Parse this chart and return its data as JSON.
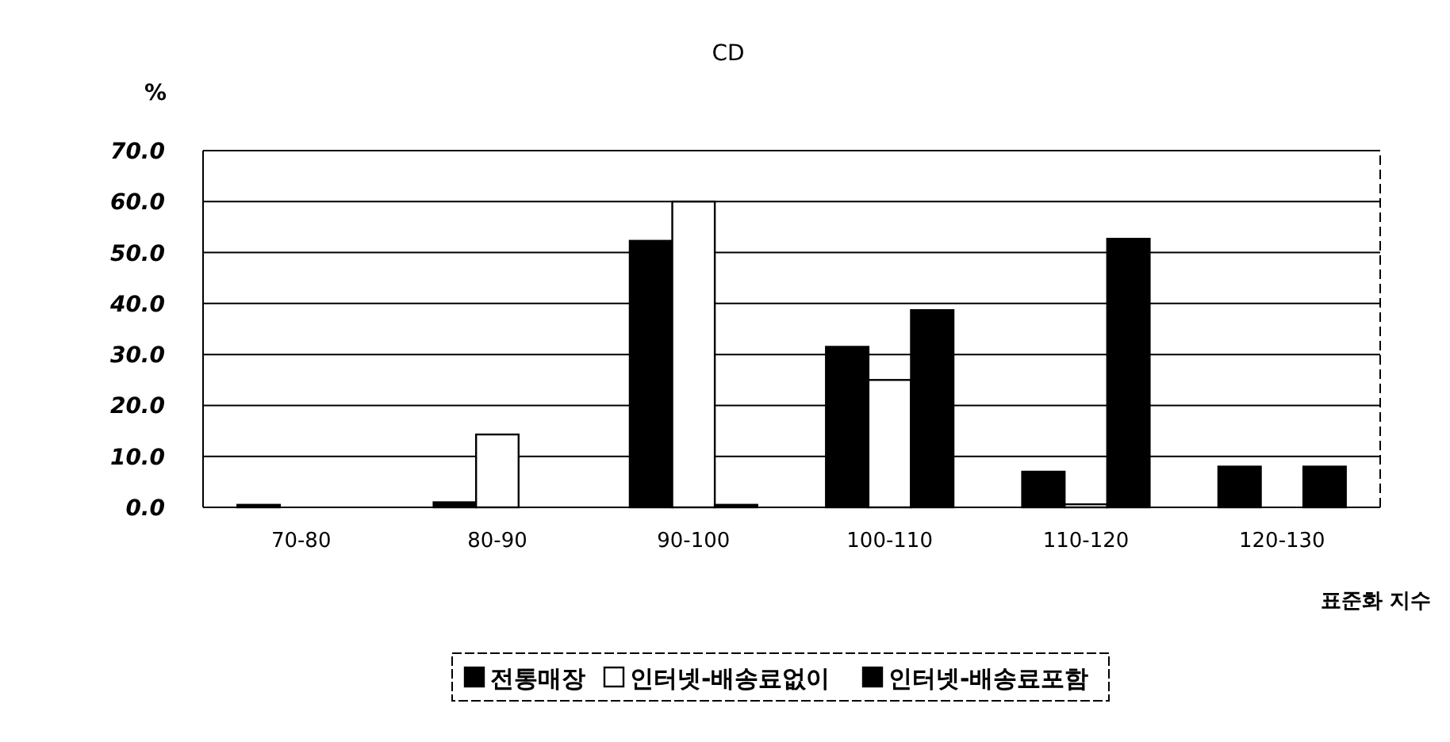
{
  "chart_data": {
    "type": "bar",
    "title": "CD",
    "ylabel": "%",
    "xlabel": "표준화 지수",
    "categories": [
      "70-80",
      "80-90",
      "90-100",
      "100-110",
      "110-120",
      "120-130"
    ],
    "series": [
      {
        "name": "전통매장",
        "color": "#000000",
        "values": [
          0.5,
          1.0,
          52.3,
          31.5,
          7.0,
          8.0
        ]
      },
      {
        "name": "인터넷-배송료없이",
        "color": "#ffffff",
        "values": [
          0,
          14.3,
          60.0,
          25.0,
          0.6,
          0
        ]
      },
      {
        "name": "인터넷-배송료포함",
        "color": "#000000",
        "values": [
          0,
          0,
          0.5,
          38.7,
          52.7,
          8.0
        ]
      }
    ],
    "ylim": [
      0,
      70
    ],
    "yticks": [
      {
        "value": 0,
        "label": "0.0"
      },
      {
        "value": 10,
        "label": "10.0"
      },
      {
        "value": 20,
        "label": "20.0"
      },
      {
        "value": 30,
        "label": "30.0"
      },
      {
        "value": 40,
        "label": "40.0"
      },
      {
        "value": 50,
        "label": "50.0"
      },
      {
        "value": 60,
        "label": "60.0"
      },
      {
        "value": 70,
        "label": "70.0"
      }
    ],
    "grid": "y",
    "legend": "bottom"
  }
}
